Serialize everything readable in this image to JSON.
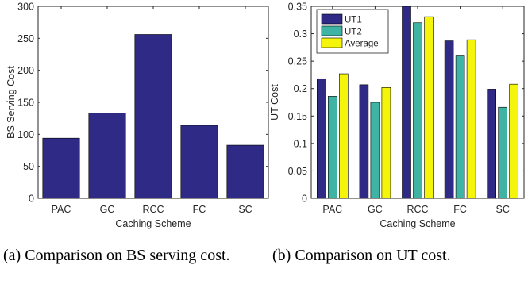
{
  "colors": {
    "ut1": "#2e2a86",
    "ut2": "#3fb3a4",
    "average": "#f5f50c",
    "bs": "#2e2a86",
    "axis": "#262626"
  },
  "chart_data": [
    {
      "type": "bar",
      "categories": [
        "PAC",
        "GC",
        "RCC",
        "FC",
        "SC"
      ],
      "values": [
        94,
        133,
        256,
        114,
        83
      ],
      "xlabel": "Caching Scheme",
      "ylabel": "BS Serving Cost",
      "ylim": [
        0,
        300
      ],
      "yticks": [
        "0",
        "50",
        "100",
        "150",
        "200",
        "250",
        "300"
      ],
      "caption": "(a) Comparison on BS serving cost."
    },
    {
      "type": "bar",
      "categories": [
        "PAC",
        "GC",
        "RCC",
        "FC",
        "SC"
      ],
      "series": [
        {
          "name": "UT1",
          "values": [
            0.218,
            0.207,
            0.35,
            0.287,
            0.199
          ]
        },
        {
          "name": "UT2",
          "values": [
            0.186,
            0.175,
            0.32,
            0.261,
            0.166
          ]
        },
        {
          "name": "Average",
          "values": [
            0.227,
            0.202,
            0.331,
            0.289,
            0.208
          ]
        }
      ],
      "xlabel": "Caching Scheme",
      "ylabel": "UT Cost",
      "ylim": [
        0,
        0.35
      ],
      "yticks": [
        "0",
        "0.05",
        "0.1",
        "0.15",
        "0.2",
        "0.25",
        "0.3",
        "0.35"
      ],
      "legend": "top-left",
      "caption": "(b) Comparison on UT cost."
    }
  ]
}
